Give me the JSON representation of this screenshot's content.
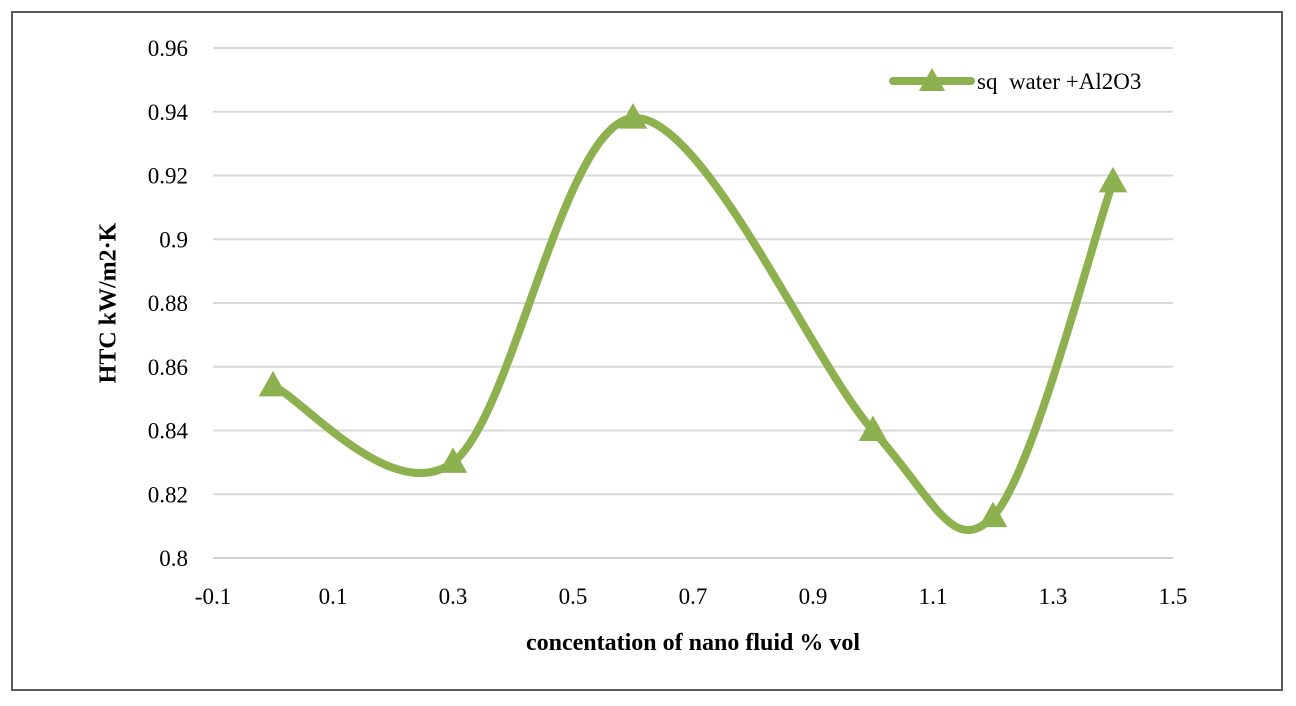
{
  "chart_data": {
    "type": "line",
    "title": "",
    "xlabel": "concentation of nano fluid % vol",
    "ylabel": "HTC kW/m2·K",
    "xlim": [
      -0.1,
      1.5
    ],
    "ylim": [
      0.8,
      0.96
    ],
    "x_ticks": [
      -0.1,
      0.1,
      0.3,
      0.5,
      0.7,
      0.9,
      1.1,
      1.3,
      1.5
    ],
    "x_tick_labels": [
      "-0.1",
      "0.1",
      "0.3",
      "0.5",
      "0.7",
      "0.9",
      "1.1",
      "1.3",
      "1.5"
    ],
    "y_ticks": [
      0.8,
      0.82,
      0.84,
      0.86,
      0.88,
      0.9,
      0.92,
      0.94,
      0.96
    ],
    "y_tick_labels": [
      "0.8",
      "0.82",
      "0.84",
      "0.86",
      "0.88",
      "0.9",
      "0.92",
      "0.94",
      "0.96"
    ],
    "grid": "horizontal",
    "smooth": true,
    "legend_position": "top-right",
    "series": [
      {
        "name": "sq  water +Al2O3",
        "color": "#8db14f",
        "marker": "triangle",
        "x": [
          0,
          0.3,
          0.6,
          1.0,
          1.2,
          1.4
        ],
        "y": [
          0.854,
          0.83,
          0.938,
          0.84,
          0.813,
          0.918
        ]
      }
    ]
  }
}
